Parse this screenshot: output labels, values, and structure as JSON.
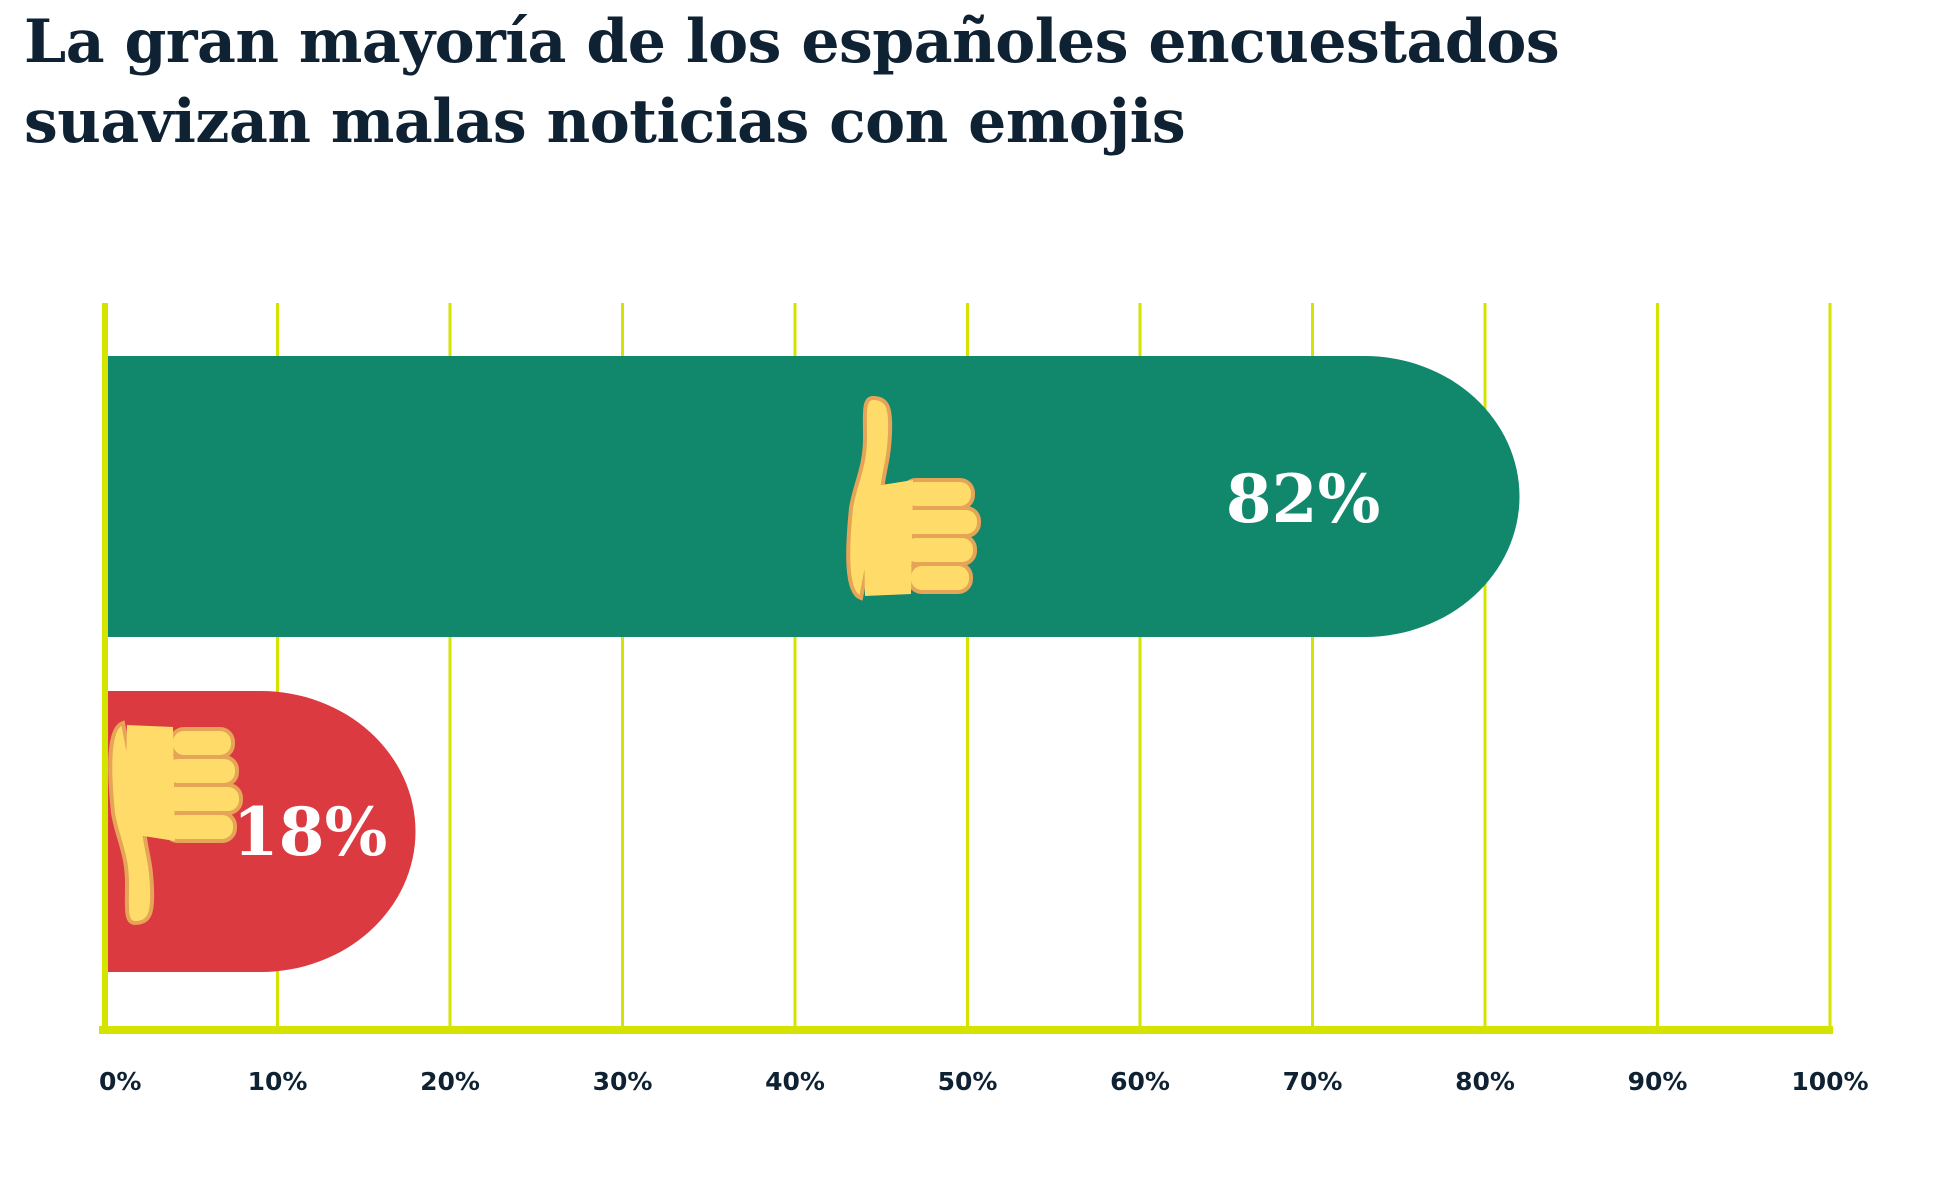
{
  "chart_data": {
    "type": "bar",
    "orientation": "horizontal",
    "title_lines": [
      "La gran mayoría de los españoles encuestados",
      "suavizan malas noticias con emojis"
    ],
    "categories": [
      "thumbs-up",
      "thumbs-down"
    ],
    "values": [
      82,
      18
    ],
    "value_labels": [
      "82%",
      "18%"
    ],
    "colors": [
      "#11876c",
      "#db3a40"
    ],
    "grid_color": "#d4e300",
    "icons": [
      "thumbs-up-icon",
      "thumbs-down-icon"
    ],
    "xlim": [
      0,
      100
    ],
    "xticks": [
      "0%",
      "10%",
      "20%",
      "30%",
      "40%",
      "50%",
      "60%",
      "70%",
      "80%",
      "90%",
      "100%"
    ],
    "grid": true
  }
}
